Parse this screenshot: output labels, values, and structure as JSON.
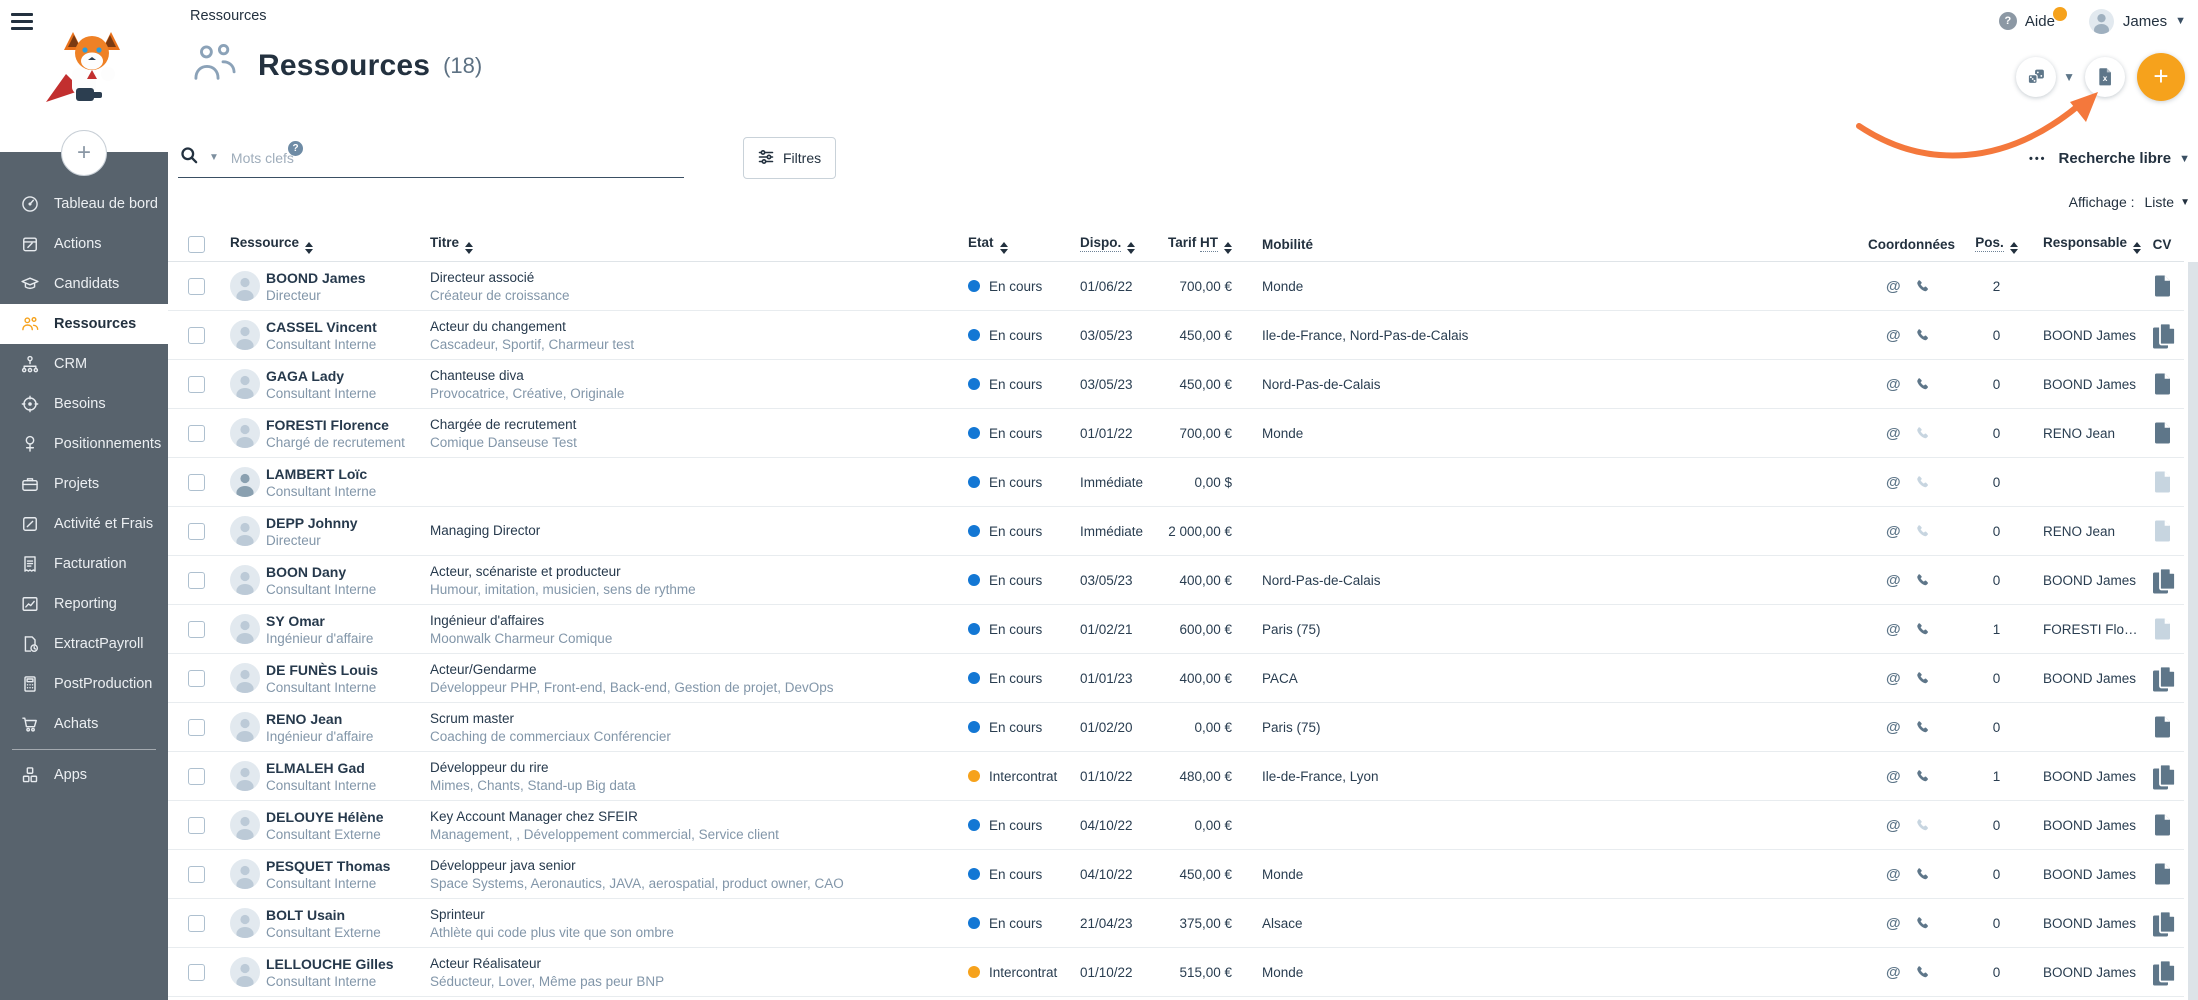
{
  "colors": {
    "accent_orange": "#F6A21C",
    "status_blue": "#1377D4",
    "status_orange": "#F6A21C",
    "arrow_orange": "#F4783C",
    "sidebar_bg": "#58636D",
    "navy": "#23313F"
  },
  "sidebar": {
    "items": [
      {
        "label": "Tableau de bord",
        "icon": "gauge-icon",
        "active": false
      },
      {
        "label": "Actions",
        "icon": "calendar-icon",
        "active": false
      },
      {
        "label": "Candidats",
        "icon": "graduation-cap-icon",
        "active": false
      },
      {
        "label": "Ressources",
        "icon": "people-icon",
        "active": true
      },
      {
        "label": "CRM",
        "icon": "org-chart-icon",
        "active": false
      },
      {
        "label": "Besoins",
        "icon": "target-icon",
        "active": false
      },
      {
        "label": "Positionnements",
        "icon": "pin-icon",
        "active": false
      },
      {
        "label": "Projets",
        "icon": "briefcase-icon",
        "active": false
      },
      {
        "label": "Activité et Frais",
        "icon": "pencil-square-icon",
        "active": false
      },
      {
        "label": "Facturation",
        "icon": "invoice-icon",
        "active": false
      },
      {
        "label": "Reporting",
        "icon": "chart-icon",
        "active": false
      },
      {
        "label": "ExtractPayroll",
        "icon": "doc-clock-icon",
        "active": false
      },
      {
        "label": "PostProduction",
        "icon": "calculator-icon",
        "active": false
      },
      {
        "label": "Achats",
        "icon": "cart-icon",
        "active": false,
        "divider_after": true
      },
      {
        "label": "Apps",
        "icon": "cubes-icon",
        "active": false
      }
    ]
  },
  "header": {
    "breadcrumb": "Ressources",
    "help_label": "Aide",
    "user_name": "James"
  },
  "page": {
    "title": "Ressources",
    "count": "(18)"
  },
  "toolbar": {
    "keywords_placeholder": "Mots clefs",
    "filters_label": "Filtres",
    "more_dots": "•••",
    "free_search_label": "Recherche libre",
    "display_label": "Affichage :",
    "display_value": "Liste"
  },
  "table": {
    "columns": [
      {
        "key": "ressource",
        "label": "Ressource",
        "sortable": true
      },
      {
        "key": "titre",
        "label": "Titre",
        "sortable": true
      },
      {
        "key": "etat",
        "label": "Etat",
        "sortable": true
      },
      {
        "key": "dispo",
        "label": "Dispo.",
        "sortable": true,
        "dotted": "all"
      },
      {
        "key": "tarif",
        "label": "Tarif",
        "label2": "HT",
        "sortable": true,
        "dotted": "last"
      },
      {
        "key": "mobilite",
        "label": "Mobilité",
        "sortable": false
      },
      {
        "key": "coordonnees",
        "label": "Coordonnées",
        "sortable": false
      },
      {
        "key": "pos",
        "label": "Pos.",
        "sortable": true,
        "dotted": "all"
      },
      {
        "key": "responsable",
        "label": "Responsable",
        "sortable": true
      },
      {
        "key": "cv",
        "label": "CV",
        "sortable": false
      }
    ],
    "rows": [
      {
        "name": "BOOND James",
        "role": "Directeur",
        "title1": "Directeur associé",
        "title2": "Créateur de croissance",
        "status": "En cours",
        "status_color": "blue",
        "dispo": "01/06/22",
        "tarif": "700,00 €",
        "mobilite": "Monde",
        "phone": "active",
        "pos": "2",
        "responsable": "",
        "cv": "single",
        "avatar": "light"
      },
      {
        "name": "CASSEL Vincent",
        "role": "Consultant Interne",
        "title1": "Acteur du changement",
        "title2": "Cascadeur, Sportif, Charmeur test",
        "status": "En cours",
        "status_color": "blue",
        "dispo": "03/05/23",
        "tarif": "450,00 €",
        "mobilite": "Ile-de-France, Nord-Pas-de-Calais",
        "phone": "active",
        "pos": "0",
        "responsable": "BOOND James",
        "cv": "double",
        "avatar": "light"
      },
      {
        "name": "GAGA Lady",
        "role": "Consultant Interne",
        "title1": "Chanteuse diva",
        "title2": "Provocatrice, Créative, Originale",
        "status": "En cours",
        "status_color": "blue",
        "dispo": "03/05/23",
        "tarif": "450,00 €",
        "mobilite": "Nord-Pas-de-Calais",
        "phone": "active",
        "pos": "0",
        "responsable": "BOOND James",
        "cv": "single",
        "avatar": "light"
      },
      {
        "name": "FORESTI Florence",
        "role": "Chargé de recrutement",
        "title1": "Chargée de recrutement",
        "title2": "Comique Danseuse Test",
        "status": "En cours",
        "status_color": "blue",
        "dispo": "01/01/22",
        "tarif": "700,00 €",
        "mobilite": "Monde",
        "phone": "muted",
        "pos": "0",
        "responsable": "RENO Jean",
        "cv": "single",
        "avatar": "light"
      },
      {
        "name": "LAMBERT Loïc",
        "role": "Consultant Interne",
        "title1": "",
        "title2": "",
        "status": "En cours",
        "status_color": "blue",
        "dispo": "Immédiate",
        "tarif": "0,00 $",
        "mobilite": "",
        "phone": "muted",
        "pos": "0",
        "responsable": "",
        "cv": "muted",
        "avatar": "dark"
      },
      {
        "name": "DEPP Johnny",
        "role": "Directeur",
        "title1": "Managing Director",
        "title2": "",
        "status": "En cours",
        "status_color": "blue",
        "dispo": "Immédiate",
        "tarif": "2 000,00 €",
        "mobilite": "",
        "phone": "muted",
        "pos": "0",
        "responsable": "RENO Jean",
        "cv": "muted",
        "avatar": "light"
      },
      {
        "name": "BOON Dany",
        "role": "Consultant Interne",
        "title1": "Acteur, scénariste et producteur",
        "title2": "Humour, imitation, musicien, sens de rythme",
        "status": "En cours",
        "status_color": "blue",
        "dispo": "03/05/23",
        "tarif": "400,00 €",
        "mobilite": "Nord-Pas-de-Calais",
        "phone": "active",
        "pos": "0",
        "responsable": "BOOND James",
        "cv": "double",
        "avatar": "light"
      },
      {
        "name": "SY Omar",
        "role": "Ingénieur d'affaire",
        "title1": "Ingénieur d'affaires",
        "title2": "Moonwalk Charmeur Comique",
        "status": "En cours",
        "status_color": "blue",
        "dispo": "01/02/21",
        "tarif": "600,00 €",
        "mobilite": "Paris (75)",
        "phone": "active",
        "pos": "1",
        "responsable": "FORESTI Flore...",
        "cv": "muted",
        "avatar": "light"
      },
      {
        "name": "DE FUNÈS Louis",
        "role": "Consultant Interne",
        "title1": "Acteur/Gendarme",
        "title2": "Développeur PHP, Front-end, Back-end, Gestion de projet, DevOps",
        "status": "En cours",
        "status_color": "blue",
        "dispo": "01/01/23",
        "tarif": "400,00 €",
        "mobilite": "PACA",
        "phone": "active",
        "pos": "0",
        "responsable": "BOOND James",
        "cv": "double",
        "avatar": "light"
      },
      {
        "name": "RENO Jean",
        "role": "Ingénieur d'affaire",
        "title1": "Scrum master",
        "title2": "Coaching de commerciaux Conférencier",
        "status": "En cours",
        "status_color": "blue",
        "dispo": "01/02/20",
        "tarif": "0,00 €",
        "mobilite": "Paris (75)",
        "phone": "active",
        "pos": "0",
        "responsable": "",
        "cv": "single",
        "avatar": "light"
      },
      {
        "name": "ELMALEH Gad",
        "role": "Consultant Interne",
        "title1": "Développeur du rire",
        "title2": "Mimes, Chants, Stand-up Big data",
        "status": "Intercontrat",
        "status_color": "orange",
        "dispo": "01/10/22",
        "tarif": "480,00 €",
        "mobilite": "Ile-de-France, Lyon",
        "phone": "active",
        "pos": "1",
        "responsable": "BOOND James",
        "cv": "double",
        "avatar": "light"
      },
      {
        "name": "DELOUYE Hélène",
        "role": "Consultant Externe",
        "title1": "Key Account Manager chez SFEIR",
        "title2": "Management, , Développement commercial, Service client",
        "status": "En cours",
        "status_color": "blue",
        "dispo": "04/10/22",
        "tarif": "0,00 €",
        "mobilite": "",
        "phone": "muted",
        "pos": "0",
        "responsable": "BOOND James",
        "cv": "single",
        "avatar": "light"
      },
      {
        "name": "PESQUET Thomas",
        "role": "Consultant Interne",
        "title1": "Développeur java senior",
        "title2": "Space Systems, Aeronautics, JAVA, aerospatial, product owner, CAO",
        "status": "En cours",
        "status_color": "blue",
        "dispo": "04/10/22",
        "tarif": "450,00 €",
        "mobilite": "Monde",
        "phone": "active",
        "pos": "0",
        "responsable": "BOOND James",
        "cv": "single",
        "avatar": "light"
      },
      {
        "name": "BOLT Usain",
        "role": "Consultant Externe",
        "title1": "Sprinteur",
        "title2": "Athlète qui code plus vite que son ombre",
        "status": "En cours",
        "status_color": "blue",
        "dispo": "21/04/23",
        "tarif": "375,00 €",
        "mobilite": "Alsace",
        "phone": "active",
        "pos": "0",
        "responsable": "BOOND James",
        "cv": "double",
        "avatar": "light"
      },
      {
        "name": "LELLOUCHE Gilles",
        "role": "Consultant Interne",
        "title1": "Acteur Réalisateur",
        "title2": "Séducteur, Lover, Même pas peur BNP",
        "status": "Intercontrat",
        "status_color": "orange",
        "dispo": "01/10/22",
        "tarif": "515,00 €",
        "mobilite": "Monde",
        "phone": "active",
        "pos": "0",
        "responsable": "BOOND James",
        "cv": "double",
        "avatar": "light"
      }
    ]
  }
}
